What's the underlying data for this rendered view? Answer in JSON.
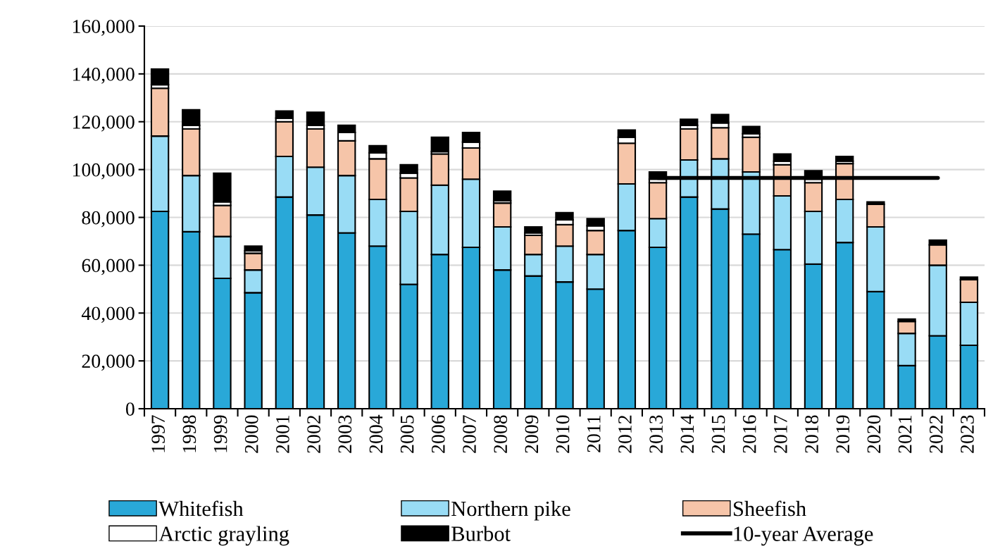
{
  "chart_data": {
    "type": "bar",
    "stacked": true,
    "categories": [
      "1997",
      "1998",
      "1999",
      "2000",
      "2001",
      "2002",
      "2003",
      "2004",
      "2005",
      "2006",
      "2007",
      "2008",
      "2009",
      "2010",
      "2011",
      "2012",
      "2013",
      "2014",
      "2015",
      "2016",
      "2017",
      "2018",
      "2019",
      "2020",
      "2021",
      "2022",
      "2023"
    ],
    "series": [
      {
        "name": "Whitefish",
        "color": "#29a8d8",
        "values": [
          82500,
          74000,
          54500,
          48500,
          88500,
          81000,
          73500,
          68000,
          52000,
          64500,
          67500,
          58000,
          55500,
          53000,
          50000,
          74500,
          67500,
          88500,
          83500,
          73000,
          66500,
          60500,
          69500,
          49000,
          18000,
          30500,
          26500
        ]
      },
      {
        "name": "Northern pike",
        "color": "#99dcf5",
        "values": [
          31500,
          23500,
          17500,
          9500,
          17000,
          20000,
          24000,
          19500,
          30500,
          29000,
          28500,
          18000,
          9000,
          15000,
          14500,
          19500,
          12000,
          15500,
          21000,
          26000,
          22500,
          22000,
          18000,
          27000,
          13500,
          29500,
          18000
        ]
      },
      {
        "name": "Sheefish",
        "color": "#f6c5a9",
        "values": [
          20000,
          19500,
          13000,
          7000,
          14500,
          16000,
          14500,
          17000,
          14000,
          13000,
          13000,
          10000,
          8000,
          9000,
          10000,
          17000,
          15000,
          13000,
          13000,
          14500,
          13000,
          12000,
          15000,
          9500,
          5000,
          8500,
          9500
        ]
      },
      {
        "name": "Arctic grayling",
        "color": "#ffffff",
        "values": [
          1500,
          1500,
          1500,
          1000,
          1500,
          1500,
          3500,
          2500,
          2000,
          1000,
          2500,
          1000,
          1000,
          2000,
          2000,
          2500,
          1500,
          1500,
          2000,
          1500,
          1500,
          1500,
          1000,
          0,
          0,
          0,
          0
        ]
      },
      {
        "name": "Burbot",
        "color": "#000000",
        "values": [
          6500,
          6500,
          12000,
          2000,
          3000,
          5500,
          3000,
          3000,
          3500,
          6000,
          4000,
          4000,
          2500,
          3000,
          3000,
          3000,
          3000,
          2500,
          3500,
          3000,
          3000,
          3500,
          2000,
          1000,
          1000,
          2000,
          1000
        ]
      },
      {
        "name": "10-year Average",
        "type": "line",
        "color": "#000000",
        "values": [
          null,
          null,
          null,
          null,
          null,
          null,
          null,
          null,
          null,
          null,
          null,
          null,
          null,
          null,
          null,
          null,
          96500,
          96500,
          96500,
          96500,
          96500,
          96500,
          96500,
          96500,
          96500,
          96500,
          null
        ]
      }
    ],
    "ylim": [
      0,
      160000
    ],
    "yticks": [
      {
        "value": 0,
        "label": "0"
      },
      {
        "value": 20000,
        "label": "20,000"
      },
      {
        "value": 40000,
        "label": "40,000"
      },
      {
        "value": 60000,
        "label": "60,000"
      },
      {
        "value": 80000,
        "label": "80,000"
      },
      {
        "value": 100000,
        "label": "100,000"
      },
      {
        "value": 120000,
        "label": "120,000"
      },
      {
        "value": 140000,
        "label": "140,000"
      },
      {
        "value": 160000,
        "label": "160,000"
      }
    ],
    "grid": "y",
    "legend": "bottom",
    "marker": "none",
    "line_style": "solid"
  }
}
